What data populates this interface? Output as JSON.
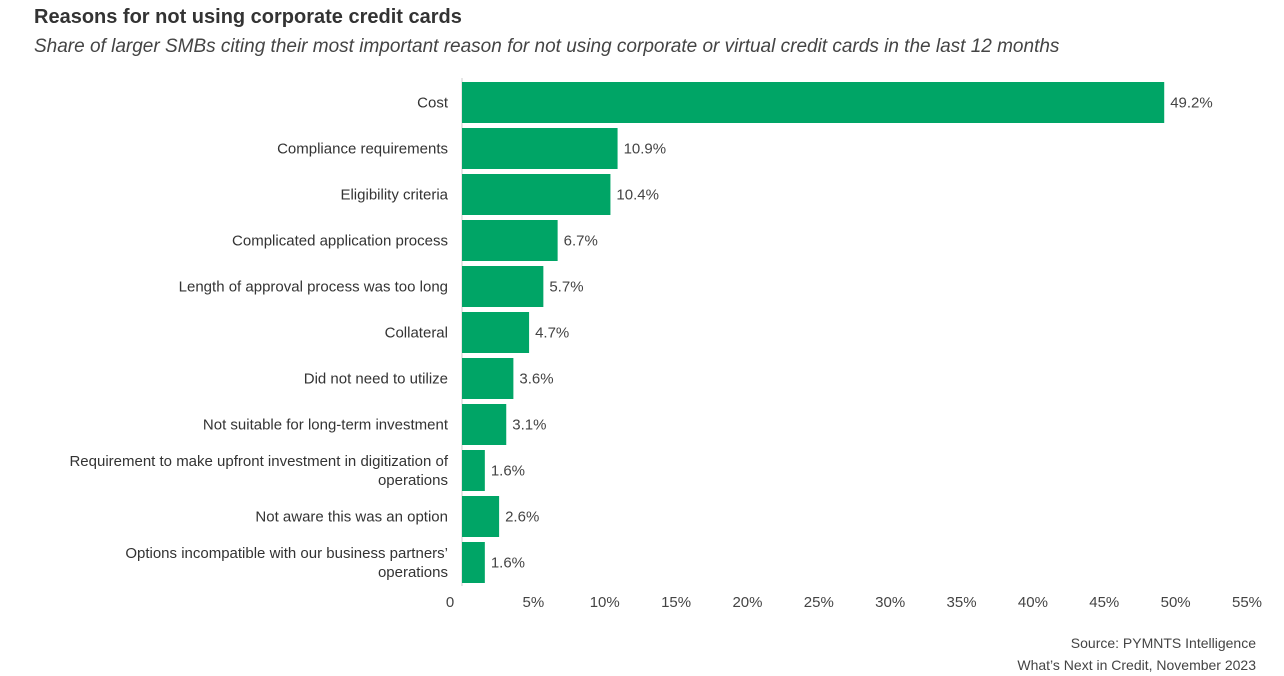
{
  "chart_data": {
    "type": "bar",
    "orientation": "horizontal",
    "title": "Reasons for not using corporate credit cards",
    "subtitle": "Share of larger SMBs citing their most important reason for not using corporate or virtual credit cards in the last 12 months",
    "categories": [
      "Cost",
      "Compliance requirements",
      "Eligibility criteria",
      "Complicated application process",
      "Length of approval process was too long",
      "Collateral",
      "Did not need to utilize",
      "Not suitable for long-term investment",
      "Requirement to make upfront investment in digitization of operations",
      "Not aware this was an option",
      "Options incompatible with our business partners' operations"
    ],
    "category_lines": [
      [
        "Cost"
      ],
      [
        "Compliance requirements"
      ],
      [
        "Eligibility criteria"
      ],
      [
        "Complicated application process"
      ],
      [
        "Length of approval process was too long"
      ],
      [
        "Collateral"
      ],
      [
        "Did not need to utilize"
      ],
      [
        "Not suitable for long-term investment"
      ],
      [
        "Requirement to make upfront investment in digitization of",
        "operations"
      ],
      [
        "Not aware this was an option"
      ],
      [
        "Options incompatible with our business partners’",
        "operations"
      ]
    ],
    "values": [
      49.2,
      10.9,
      10.4,
      6.7,
      5.7,
      4.7,
      3.6,
      3.1,
      1.6,
      2.6,
      1.6
    ],
    "value_labels": [
      "49.2%",
      "10.9%",
      "10.4%",
      "6.7%",
      "5.7%",
      "4.7%",
      "3.6%",
      "3.1%",
      "1.6%",
      "2.6%",
      "1.6%"
    ],
    "xlim": [
      0,
      55
    ],
    "xticks": [
      0,
      5,
      10,
      15,
      20,
      25,
      30,
      35,
      40,
      45,
      50,
      55
    ],
    "xtick_labels": [
      "0",
      "5%",
      "10%",
      "15%",
      "20%",
      "25%",
      "30%",
      "35%",
      "40%",
      "45%",
      "50%",
      "55%"
    ],
    "xlabel": "",
    "ylabel": "",
    "grid": false,
    "legend": "none",
    "bar_color": "#00A566"
  },
  "source": {
    "line1": "Source: PYMNTS Intelligence",
    "line2": "What’s Next in Credit, November 2023"
  }
}
